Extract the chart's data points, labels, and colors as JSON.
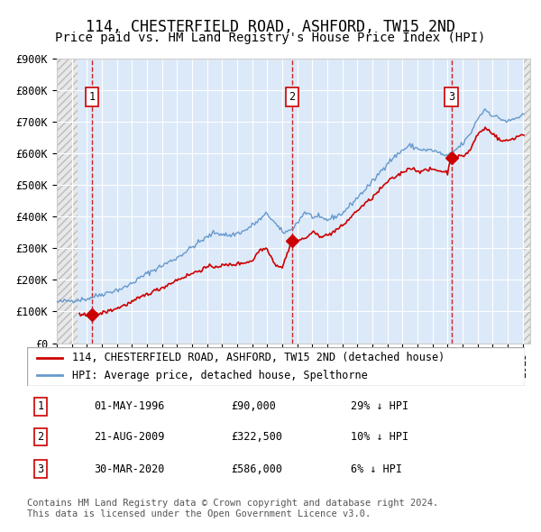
{
  "title": "114, CHESTERFIELD ROAD, ASHFORD, TW15 2ND",
  "subtitle": "Price paid vs. HM Land Registry's House Price Index (HPI)",
  "ylim": [
    0,
    900000
  ],
  "yticks": [
    0,
    100000,
    200000,
    300000,
    400000,
    500000,
    600000,
    700000,
    800000,
    900000
  ],
  "ytick_labels": [
    "£0",
    "£100K",
    "£200K",
    "£300K",
    "£400K",
    "£500K",
    "£600K",
    "£700K",
    "£800K",
    "£900K"
  ],
  "xlim_start": 1994.0,
  "xlim_end": 2025.5,
  "plot_bg_color": "#dce9f8",
  "grid_color": "#ffffff",
  "hpi_line_color": "#6699cc",
  "price_line_color": "#cc0000",
  "vline_color": "#cc0000",
  "marker_color": "#cc0000",
  "sale_dates_decimal": [
    1996.33,
    2009.64,
    2020.25
  ],
  "sale_prices": [
    90000,
    322500,
    586000
  ],
  "sale_labels": [
    "1",
    "2",
    "3"
  ],
  "sale_date_strings": [
    "01-MAY-1996",
    "21-AUG-2009",
    "30-MAR-2020"
  ],
  "sale_price_strings": [
    "£90,000",
    "£322,500",
    "£586,000"
  ],
  "sale_hpi_strings": [
    "29% ↓ HPI",
    "10% ↓ HPI",
    "6% ↓ HPI"
  ],
  "legend_label_red": "114, CHESTERFIELD ROAD, ASHFORD, TW15 2ND (detached house)",
  "legend_label_blue": "HPI: Average price, detached house, Spelthorne",
  "footer_text": "Contains HM Land Registry data © Crown copyright and database right 2024.\nThis data is licensed under the Open Government Licence v3.0.",
  "title_fontsize": 12,
  "subtitle_fontsize": 10,
  "tick_fontsize": 8.5,
  "legend_fontsize": 8.5,
  "footer_fontsize": 7.5,
  "hpi_anchors_t": [
    1994.0,
    1995.0,
    1996.0,
    1997.0,
    1998.5,
    2000.0,
    2002.0,
    2003.5,
    2004.5,
    2005.5,
    2006.5,
    2007.5,
    2008.0,
    2008.5,
    2009.0,
    2009.5,
    2010.0,
    2010.5,
    2011.0,
    2011.5,
    2012.0,
    2013.0,
    2014.0,
    2015.0,
    2016.0,
    2017.0,
    2017.5,
    2018.0,
    2018.5,
    2019.0,
    2019.5,
    2020.0,
    2020.5,
    2021.0,
    2021.5,
    2022.0,
    2022.5,
    2023.0,
    2023.5,
    2024.0,
    2024.5,
    2025.0
  ],
  "hpi_anchors_v": [
    130000,
    135000,
    140000,
    155000,
    175000,
    220000,
    270000,
    320000,
    350000,
    340000,
    355000,
    390000,
    410000,
    380000,
    350000,
    355000,
    380000,
    415000,
    400000,
    395000,
    390000,
    410000,
    460000,
    510000,
    570000,
    610000,
    625000,
    615000,
    610000,
    610000,
    600000,
    590000,
    610000,
    630000,
    660000,
    710000,
    740000,
    720000,
    710000,
    700000,
    710000,
    720000
  ],
  "price_anchors_t": [
    1995.5,
    1996.0,
    1996.33,
    1997.0,
    1998.0,
    1999.0,
    2000.0,
    2001.0,
    2002.0,
    2003.0,
    2004.0,
    2005.0,
    2006.0,
    2007.0,
    2007.5,
    2008.0,
    2008.5,
    2009.0,
    2009.64,
    2010.0,
    2010.5,
    2011.0,
    2011.5,
    2012.0,
    2013.0,
    2014.0,
    2015.0,
    2016.0,
    2017.0,
    2017.5,
    2018.0,
    2018.5,
    2019.0,
    2019.5,
    2020.0,
    2020.25,
    2020.5,
    2021.0,
    2021.5,
    2022.0,
    2022.5,
    2023.0,
    2023.5,
    2024.0,
    2024.5,
    2025.0
  ],
  "price_anchors_v": [
    88000,
    89000,
    90000,
    95000,
    110000,
    130000,
    155000,
    175000,
    200000,
    220000,
    240000,
    245000,
    250000,
    260000,
    295000,
    300000,
    250000,
    240000,
    322500,
    325000,
    330000,
    350000,
    340000,
    340000,
    370000,
    420000,
    460000,
    510000,
    540000,
    555000,
    545000,
    545000,
    550000,
    545000,
    540000,
    586000,
    590000,
    590000,
    610000,
    660000,
    680000,
    665000,
    640000,
    640000,
    650000,
    660000
  ]
}
